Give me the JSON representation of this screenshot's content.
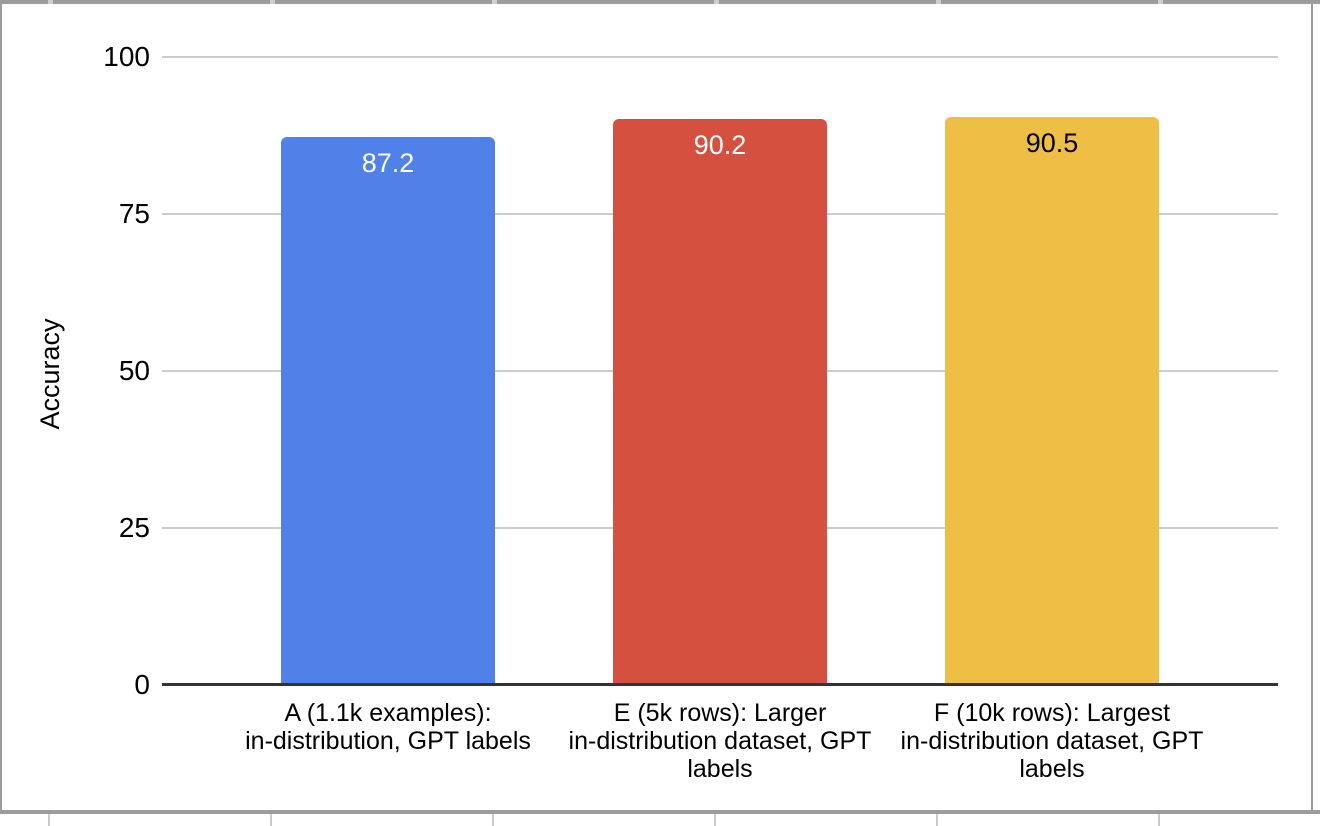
{
  "chart_data": {
    "type": "bar",
    "title": "",
    "xlabel": "",
    "ylabel": "Accuracy",
    "ylim": [
      0,
      100
    ],
    "yticks": [
      0,
      25,
      50,
      75,
      100
    ],
    "grid": true,
    "legend": "none",
    "categories": [
      "A (1.1k examples):\nin-distribution, GPT labels",
      "E (5k rows): Larger\nin-distribution dataset, GPT\nlabels",
      "F (10k rows): Largest\nin-distribution dataset, GPT\nlabels"
    ],
    "values": [
      87.2,
      90.2,
      90.5
    ],
    "value_labels": [
      "87.2",
      "90.2",
      "90.5"
    ],
    "bar_colors": [
      "#5081e8",
      "#d5503f",
      "#efbe45"
    ],
    "value_label_colors": [
      "#ffffff",
      "#ffffff",
      "#000000"
    ]
  },
  "colors": {
    "gridline": "#cccccc",
    "axis_line": "#333333",
    "frame": "#9c9c9c",
    "background": "#ffffff"
  }
}
